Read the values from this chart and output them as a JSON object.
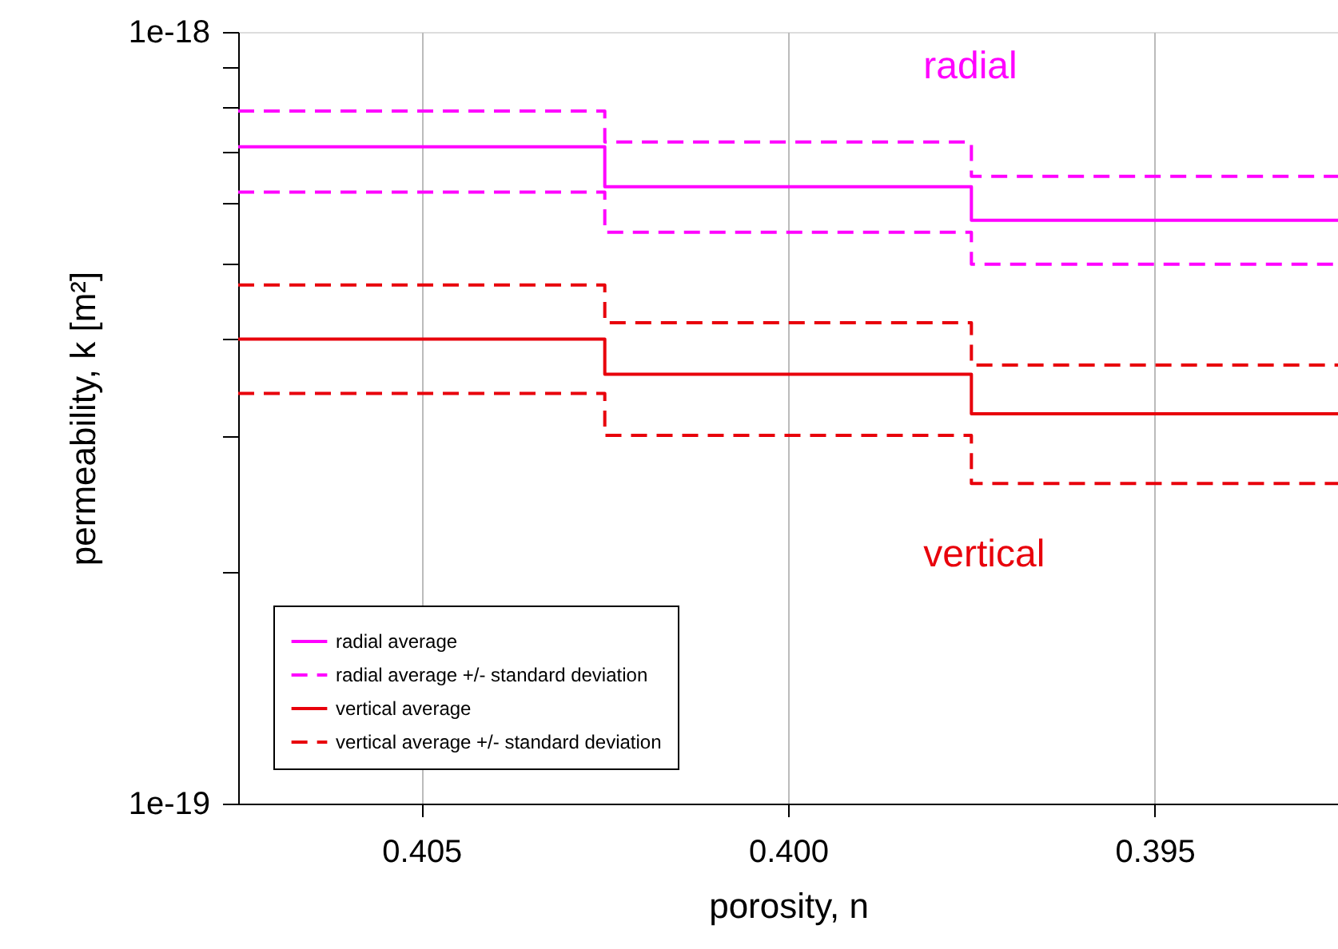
{
  "chart_data": {
    "type": "step",
    "xlabel": "porosity, n",
    "ylabel": "permeability, k [m²]",
    "x": [
      0.4075,
      0.4025,
      0.3975,
      0.3925
    ],
    "xlim": [
      0.4075,
      0.3925
    ],
    "xticks": [
      {
        "value": 0.405,
        "label": "0.405"
      },
      {
        "value": 0.4,
        "label": "0.400"
      },
      {
        "value": 0.395,
        "label": "0.395"
      }
    ],
    "ylim": [
      1e-19,
      1e-18
    ],
    "log": "y",
    "yticks": [
      {
        "value": 1e-19,
        "label": "1e-19"
      },
      {
        "value": 2e-19,
        "label": null
      },
      {
        "value": 3e-19,
        "label": null
      },
      {
        "value": 4e-19,
        "label": null
      },
      {
        "value": 5e-19,
        "label": null
      },
      {
        "value": 6e-19,
        "label": null
      },
      {
        "value": 7e-19,
        "label": null
      },
      {
        "value": 8e-19,
        "label": null
      },
      {
        "value": 9e-19,
        "label": null
      },
      {
        "value": 1e-18,
        "label": "1e-18"
      }
    ],
    "grid": "x",
    "legend": "bottom left",
    "marker": "none",
    "series": [
      {
        "name": "radial average",
        "color": "#ff00ff",
        "line_style": "solid",
        "values": [
          7.1e-19,
          6.3e-19,
          5.7e-19,
          5.7e-19
        ]
      },
      {
        "name": "radial average +/- standard deviation",
        "color": "#ff00ff",
        "line_style": "dashed",
        "values": [
          7.9e-19,
          7.2e-19,
          6.5e-19,
          6.5e-19
        ]
      },
      {
        "color": "#ff00ff",
        "line_style": "dashed",
        "values": [
          6.2e-19,
          5.5e-19,
          5e-19,
          5e-19
        ]
      },
      {
        "name": "vertical average",
        "color": "#e8000b",
        "line_style": "solid",
        "values": [
          4e-19,
          3.6e-19,
          3.2e-19,
          3.2e-19
        ]
      },
      {
        "name": "vertical average +/- standard deviation",
        "color": "#e8000b",
        "line_style": "dashed",
        "values": [
          4.7e-19,
          4.2e-19,
          3.7e-19,
          3.7e-19
        ]
      },
      {
        "color": "#e8000b",
        "line_style": "dashed",
        "values": [
          3.4e-19,
          3e-19,
          2.6e-19,
          2.6e-19
        ]
      }
    ],
    "annotations": [
      "radial",
      "vertical"
    ]
  }
}
